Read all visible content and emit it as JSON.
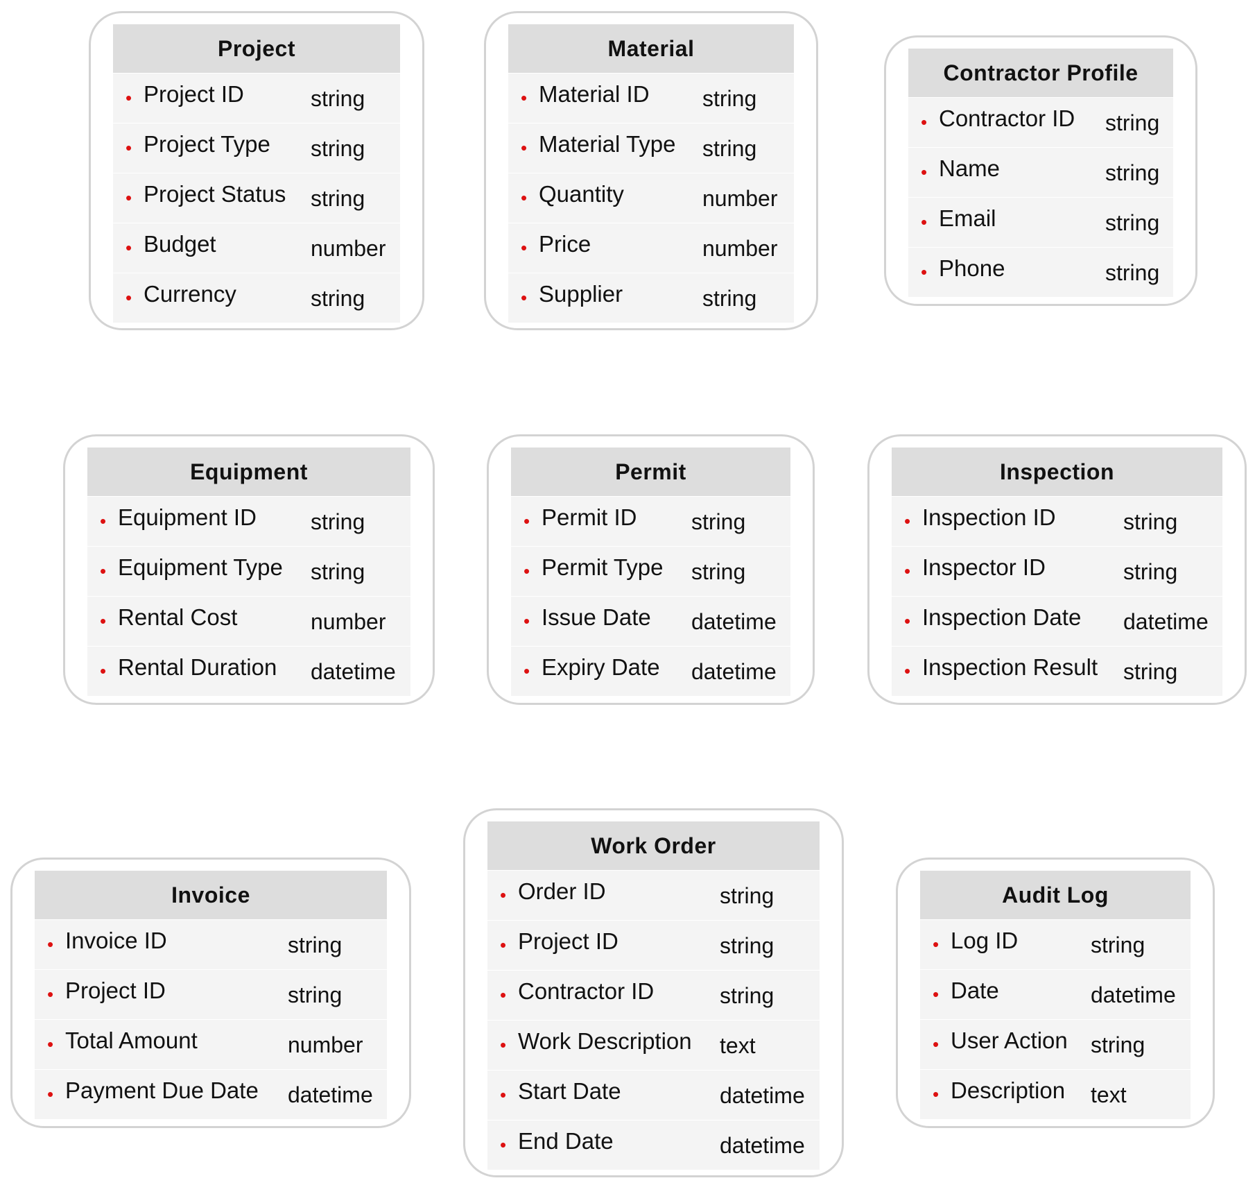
{
  "entities": [
    {
      "title": "Project",
      "fields": [
        {
          "name": "Project ID",
          "type": "string"
        },
        {
          "name": "Project Type",
          "type": "string"
        },
        {
          "name": "Project Status",
          "type": "string"
        },
        {
          "name": "Budget",
          "type": "number"
        },
        {
          "name": "Currency",
          "type": "string"
        }
      ]
    },
    {
      "title": "Material",
      "fields": [
        {
          "name": "Material ID",
          "type": "string"
        },
        {
          "name": "Material Type",
          "type": "string"
        },
        {
          "name": "Quantity",
          "type": "number"
        },
        {
          "name": "Price",
          "type": "number"
        },
        {
          "name": "Supplier",
          "type": "string"
        }
      ]
    },
    {
      "title": "Contractor Profile",
      "fields": [
        {
          "name": "Contractor ID",
          "type": "string"
        },
        {
          "name": "Name",
          "type": "string"
        },
        {
          "name": "Email",
          "type": "string"
        },
        {
          "name": "Phone",
          "type": "string"
        }
      ]
    },
    {
      "title": "Equipment",
      "fields": [
        {
          "name": "Equipment ID",
          "type": "string"
        },
        {
          "name": "Equipment Type",
          "type": "string"
        },
        {
          "name": "Rental Cost",
          "type": "number"
        },
        {
          "name": "Rental Duration",
          "type": "datetime"
        }
      ]
    },
    {
      "title": "Permit",
      "fields": [
        {
          "name": "Permit ID",
          "type": "string"
        },
        {
          "name": "Permit Type",
          "type": "string"
        },
        {
          "name": "Issue Date",
          "type": "datetime"
        },
        {
          "name": "Expiry Date",
          "type": "datetime"
        }
      ]
    },
    {
      "title": "Inspection",
      "fields": [
        {
          "name": "Inspection ID",
          "type": "string"
        },
        {
          "name": "Inspector ID",
          "type": "string"
        },
        {
          "name": "Inspection Date",
          "type": "datetime"
        },
        {
          "name": "Inspection Result",
          "type": "string"
        }
      ]
    },
    {
      "title": "Invoice",
      "fields": [
        {
          "name": "Invoice ID",
          "type": "string"
        },
        {
          "name": "Project ID",
          "type": "string"
        },
        {
          "name": "Total Amount",
          "type": "number"
        },
        {
          "name": "Payment Due Date",
          "type": "datetime"
        }
      ]
    },
    {
      "title": "Work Order",
      "fields": [
        {
          "name": "Order ID",
          "type": "string"
        },
        {
          "name": "Project ID",
          "type": "string"
        },
        {
          "name": "Contractor ID",
          "type": "string"
        },
        {
          "name": "Work Description",
          "type": "text"
        },
        {
          "name": "Start Date",
          "type": "datetime"
        },
        {
          "name": "End Date",
          "type": "datetime"
        }
      ]
    },
    {
      "title": "Audit Log",
      "fields": [
        {
          "name": "Log ID",
          "type": "string"
        },
        {
          "name": "Date",
          "type": "datetime"
        },
        {
          "name": "User Action",
          "type": "string"
        },
        {
          "name": "Description",
          "type": "text"
        }
      ]
    }
  ],
  "colors": {
    "border": "#d3d3d3",
    "header": "#dddddd",
    "body": "#f4f4f4",
    "bullet": "#dd1111"
  }
}
